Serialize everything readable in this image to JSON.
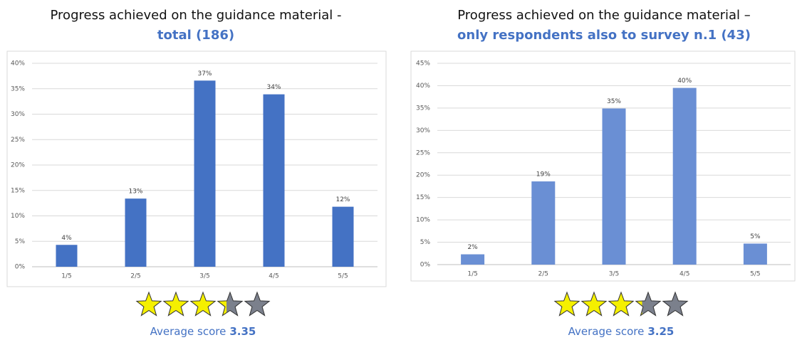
{
  "chart_data": [
    {
      "type": "bar",
      "title": "Progress achieved on the guidance material -",
      "subtitle": "total (186)",
      "categories": [
        "1/5",
        "2/5",
        "3/5",
        "4/5",
        "5/5"
      ],
      "values": [
        4.3,
        13.4,
        36.6,
        33.9,
        11.8
      ],
      "value_labels": [
        "4%",
        "13%",
        "37%",
        "34%",
        "12%"
      ],
      "color": "#4472c4",
      "ylim": [
        0,
        40
      ],
      "yticks": [
        {
          "value": 0,
          "label": "0%"
        },
        {
          "value": 5,
          "label": "5%"
        },
        {
          "value": 10,
          "label": "10%"
        },
        {
          "value": 15,
          "label": "15%"
        },
        {
          "value": 20,
          "label": "20%"
        },
        {
          "value": 25,
          "label": "25%"
        },
        {
          "value": 30,
          "label": "30%"
        },
        {
          "value": 35,
          "label": "35%"
        },
        {
          "value": 40,
          "label": "40%"
        }
      ],
      "grid": true,
      "score_label": "Average score",
      "score": 3.35
    },
    {
      "type": "bar",
      "title": "Progress achieved on the guidance material –",
      "subtitle": "only respondents also to survey n.1 (43)",
      "categories": [
        "1/5",
        "2/5",
        "3/5",
        "4/5",
        "5/5"
      ],
      "values": [
        2.3,
        18.6,
        34.9,
        39.5,
        4.7
      ],
      "value_labels": [
        "2%",
        "19%",
        "35%",
        "40%",
        "5%"
      ],
      "color": "#6a8fd4",
      "ylim": [
        0,
        45
      ],
      "yticks": [
        {
          "value": 0,
          "label": "0%"
        },
        {
          "value": 5,
          "label": "5%"
        },
        {
          "value": 10,
          "label": "10%"
        },
        {
          "value": 15,
          "label": "15%"
        },
        {
          "value": 20,
          "label": "20%"
        },
        {
          "value": 25,
          "label": "25%"
        },
        {
          "value": 30,
          "label": "30%"
        },
        {
          "value": 35,
          "label": "35%"
        },
        {
          "value": 40,
          "label": "40%"
        },
        {
          "value": 45,
          "label": "45%"
        }
      ],
      "grid": true,
      "score_label": "Average score",
      "score": 3.25
    }
  ]
}
